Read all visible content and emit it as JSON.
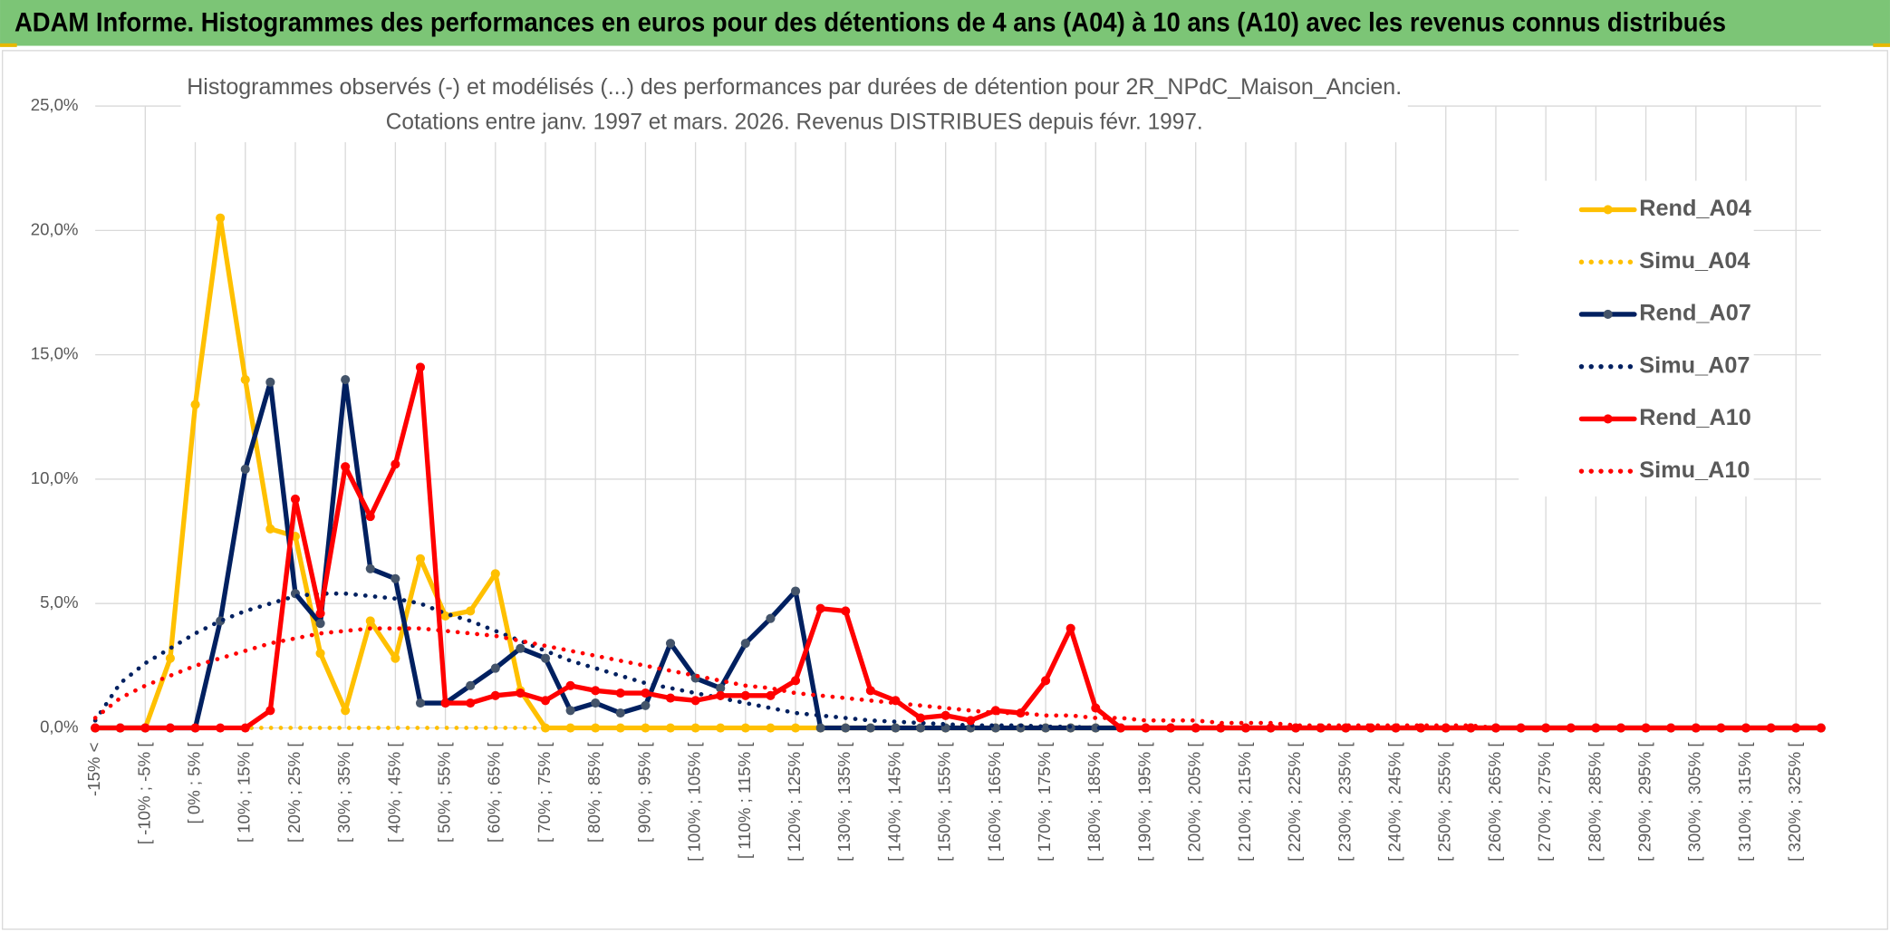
{
  "header": "ADAM Informe. Histogrammes des performances en euros pour des détentions de 4 ans (A04) à 10 ans (A10) avec les revenus connus distribués",
  "chart_data": {
    "type": "line",
    "title": "Histogrammes observés (-) et modélisés (...) des performances par durées de détention pour 2R_NPdC_Maison_Ancien.",
    "subtitle": "Cotations entre janv. 1997 et mars. 2026. Revenus DISTRIBUES depuis févr. 1997.",
    "categories": [
      "-15% <",
      null,
      "[ -10% ; -5% [",
      null,
      "[ 0% ; 5% [",
      null,
      "[ 10% ; 15% [",
      null,
      "[ 20% ; 25% [",
      null,
      "[ 30% ; 35% [",
      null,
      "[ 40% ; 45% [",
      null,
      "[ 50% ; 55% [",
      null,
      "[ 60% ; 65% [",
      null,
      "[ 70% ; 75% [",
      null,
      "[ 80% ; 85% [",
      null,
      "[ 90% ; 95% [",
      null,
      "[ 100% ; 105% [",
      null,
      "[ 110% ; 115% [",
      null,
      "[ 120% ; 125% [",
      null,
      "[ 130% ; 135% [",
      null,
      "[ 140% ; 145% [",
      null,
      "[ 150% ; 155% [",
      null,
      "[ 160% ; 165% [",
      null,
      "[ 170% ; 175% [",
      null,
      "[ 180% ; 185% [",
      null,
      "[ 190% ; 195% [",
      null,
      "[ 200% ; 205% [",
      null,
      "[ 210% ; 215% [",
      null,
      "[ 220% ; 225% [",
      null,
      "[ 230% ; 235% [",
      null,
      "[ 240% ; 245% [",
      null,
      "[ 250% ; 255% [",
      null,
      "[ 260% ; 265% [",
      null,
      "[ 270% ; 275% [",
      null,
      "[ 280% ; 285% [",
      null,
      "[ 290% ; 295% [",
      null,
      "[ 300% ; 305% [",
      null,
      "[ 310% ; 315% [",
      null,
      "[ 320% ; 325% [",
      null
    ],
    "series": [
      {
        "name": "Rend_A04",
        "color": "#ffc000",
        "style": "solid",
        "markers": true,
        "values": [
          0,
          0,
          0,
          2.8,
          13.0,
          20.5,
          14.0,
          8.0,
          7.7,
          3.0,
          0.7,
          4.3,
          2.8,
          6.8,
          4.5,
          4.7,
          6.2,
          1.5,
          0,
          0,
          0,
          0,
          0,
          0,
          0,
          0,
          0,
          0,
          0,
          0,
          0,
          0,
          0,
          0,
          0,
          0,
          0,
          0,
          0,
          0,
          0,
          0,
          0,
          0,
          0,
          0,
          0,
          0,
          0,
          0,
          0,
          0,
          0,
          0,
          0,
          0,
          0,
          0,
          0,
          0,
          0,
          0,
          0,
          0,
          0,
          0,
          0,
          0,
          0,
          0
        ]
      },
      {
        "name": "Simu_A04",
        "color": "#ffc000",
        "style": "dotted",
        "markers": false,
        "values": [
          0,
          0,
          0,
          0,
          0,
          0,
          0,
          0,
          0,
          0,
          0,
          0,
          0,
          0,
          0,
          0,
          0,
          0,
          0,
          0,
          0,
          0,
          0,
          0,
          0,
          0,
          0,
          0,
          0,
          0,
          0,
          0,
          0,
          0,
          0,
          0,
          0,
          0,
          0,
          0,
          0,
          0,
          0,
          0,
          0,
          0,
          0,
          0,
          0,
          0,
          0,
          0,
          0,
          0,
          0,
          0,
          0,
          0,
          0,
          0,
          0,
          0,
          0,
          0,
          0,
          0,
          0,
          0,
          0,
          0
        ]
      },
      {
        "name": "Rend_A07",
        "color": "#002060",
        "marker_color": "#44546a",
        "style": "solid",
        "markers": true,
        "values": [
          0,
          0,
          0,
          0,
          0,
          4.3,
          10.4,
          13.9,
          5.4,
          4.2,
          14.0,
          6.4,
          6.0,
          1.0,
          1.0,
          1.7,
          2.4,
          3.2,
          2.8,
          0.7,
          1.0,
          0.6,
          0.9,
          3.4,
          2.0,
          1.6,
          3.4,
          4.4,
          5.5,
          0,
          0,
          0,
          0,
          0,
          0,
          0,
          0,
          0,
          0,
          0,
          0,
          0,
          0,
          0,
          0,
          0,
          0,
          0,
          0,
          0,
          0,
          0,
          0,
          0,
          0,
          0,
          0,
          0,
          0,
          0,
          0,
          0,
          0,
          0,
          0,
          0,
          0,
          0,
          0,
          0
        ]
      },
      {
        "name": "Simu_A07",
        "color": "#002060",
        "style": "dotted",
        "markers": false,
        "values": [
          0.3,
          1.8,
          2.6,
          3.2,
          3.8,
          4.3,
          4.7,
          5.0,
          5.3,
          5.4,
          5.4,
          5.3,
          5.2,
          5.0,
          4.6,
          4.3,
          3.9,
          3.5,
          3.1,
          2.7,
          2.4,
          2.1,
          1.8,
          1.6,
          1.4,
          1.2,
          1.0,
          0.8,
          0.6,
          0.5,
          0.4,
          0.3,
          0.25,
          0.2,
          0.15,
          0.1,
          0.1,
          0.1,
          0.05,
          0.05,
          0,
          0,
          0,
          0,
          0,
          0,
          0,
          0,
          0,
          0,
          0,
          0,
          0,
          0,
          0,
          0,
          0,
          0,
          0,
          0,
          0,
          0,
          0,
          0,
          0,
          0,
          0,
          0,
          0,
          0
        ]
      },
      {
        "name": "Rend_A10",
        "color": "#ff0000",
        "style": "solid",
        "markers": true,
        "values": [
          0,
          0,
          0,
          0,
          0,
          0,
          0,
          0.7,
          9.2,
          4.6,
          10.5,
          8.5,
          10.6,
          14.5,
          1.0,
          1.0,
          1.3,
          1.4,
          1.1,
          1.7,
          1.5,
          1.4,
          1.4,
          1.2,
          1.1,
          1.3,
          1.3,
          1.3,
          1.9,
          4.8,
          4.7,
          1.5,
          1.1,
          0.4,
          0.5,
          0.3,
          0.7,
          0.6,
          1.9,
          4.0,
          0.8,
          0,
          0,
          0,
          0,
          0,
          0,
          0,
          0,
          0,
          0,
          0,
          0,
          0,
          0,
          0,
          0,
          0,
          0,
          0,
          0,
          0,
          0,
          0,
          0,
          0,
          0,
          0,
          0,
          0
        ]
      },
      {
        "name": "Simu_A10",
        "color": "#ff0000",
        "style": "dotted",
        "markers": false,
        "values": [
          0.4,
          1.2,
          1.7,
          2.1,
          2.5,
          2.8,
          3.1,
          3.4,
          3.6,
          3.8,
          3.9,
          4.0,
          4.0,
          4.0,
          3.9,
          3.8,
          3.7,
          3.5,
          3.3,
          3.1,
          2.9,
          2.7,
          2.5,
          2.3,
          2.1,
          1.9,
          1.7,
          1.6,
          1.4,
          1.3,
          1.2,
          1.1,
          1.0,
          0.9,
          0.8,
          0.7,
          0.6,
          0.6,
          0.5,
          0.5,
          0.4,
          0.4,
          0.3,
          0.3,
          0.3,
          0.2,
          0.2,
          0.2,
          0.1,
          0.1,
          0.1,
          0.1,
          0.1,
          0.1,
          0.1,
          0.1,
          0,
          0,
          0,
          0,
          0,
          0,
          0,
          0,
          0,
          0,
          0,
          0,
          0,
          0
        ]
      }
    ],
    "ylim": [
      0,
      25
    ],
    "yticks": [
      {
        "value": 0,
        "label": "0,0%"
      },
      {
        "value": 5,
        "label": "5,0%"
      },
      {
        "value": 10,
        "label": "10,0%"
      },
      {
        "value": 15,
        "label": "15,0%"
      },
      {
        "value": 20,
        "label": "20,0%"
      },
      {
        "value": 25,
        "label": "25,0%"
      }
    ],
    "grid": true,
    "legend": "right"
  }
}
